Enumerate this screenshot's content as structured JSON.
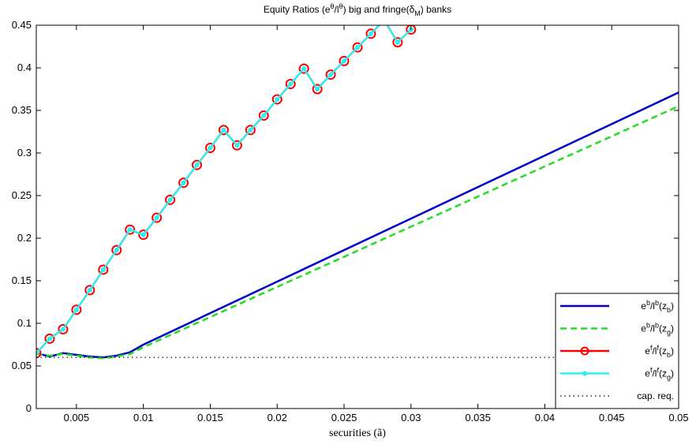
{
  "chart_data": {
    "type": "line",
    "title": {
      "prefix": "Equity Ratios (e",
      "sup1": "θ",
      "mid": "/l",
      "sup2": "θ",
      "after": ") big and fringe(δ",
      "sub": "M",
      "suffix": ") banks"
    },
    "xlabel": "securities (ã)",
    "ylabel": "",
    "xlim": [
      0.002,
      0.05
    ],
    "ylim": [
      0,
      0.45
    ],
    "xticks": [
      0.005,
      0.01,
      0.015,
      0.02,
      0.025,
      0.03,
      0.035,
      0.04,
      0.045,
      0.05
    ],
    "xtick_labels": [
      "0.005",
      "0.01",
      "0.015",
      "0.02",
      "0.025",
      "0.03",
      "0.035",
      "0.04",
      "0.045",
      "0.05"
    ],
    "yticks": [
      0,
      0.05,
      0.1,
      0.15,
      0.2,
      0.25,
      0.3,
      0.35,
      0.4,
      0.45
    ],
    "ytick_labels": [
      "0",
      "0.05",
      "0.1",
      "0.15",
      "0.2",
      "0.25",
      "0.3",
      "0.35",
      "0.4",
      "0.45"
    ],
    "grid": false,
    "legend_position": "bottom-right",
    "series": [
      {
        "name": "e^b/l^b(z_b)",
        "legend": {
          "base": "e",
          "sup1": "b",
          "mid": "/l",
          "sup2": "b",
          "paren": "(z",
          "sub": "b",
          "close": ")"
        },
        "color": "#0000cc",
        "style": "solid",
        "marker": "none",
        "x": [
          0.002,
          0.003,
          0.004,
          0.005,
          0.006,
          0.007,
          0.008,
          0.009,
          0.01,
          0.05
        ],
        "y": [
          0.065,
          0.061,
          0.065,
          0.063,
          0.061,
          0.06,
          0.062,
          0.066,
          0.075,
          0.371
        ]
      },
      {
        "name": "e^b/l^b(z_g)",
        "legend": {
          "base": "e",
          "sup1": "b",
          "mid": "/l",
          "sup2": "b",
          "paren": "(z",
          "sub": "g",
          "close": ")"
        },
        "color": "#22dd22",
        "style": "dashed",
        "marker": "none",
        "x": [
          0.002,
          0.003,
          0.004,
          0.005,
          0.006,
          0.007,
          0.008,
          0.009,
          0.01,
          0.05
        ],
        "y": [
          0.064,
          0.062,
          0.064,
          0.062,
          0.06,
          0.059,
          0.061,
          0.064,
          0.072,
          0.355
        ]
      },
      {
        "name": "e^f/l^f(z_b)",
        "legend": {
          "base": "e",
          "sup1": "f",
          "mid": "/l",
          "sup2": "f",
          "paren": "(z",
          "sub": "b",
          "close": ")"
        },
        "color": "#ff0000",
        "style": "solid",
        "marker": "circle",
        "x": [
          0.002,
          0.003,
          0.004,
          0.005,
          0.006,
          0.007,
          0.008,
          0.009,
          0.01,
          0.011,
          0.012,
          0.013,
          0.014,
          0.015,
          0.016,
          0.017,
          0.018,
          0.019,
          0.02,
          0.021,
          0.022,
          0.023,
          0.024,
          0.025,
          0.026,
          0.027,
          0.028,
          0.029,
          0.03
        ],
        "y": [
          0.065,
          0.082,
          0.093,
          0.116,
          0.139,
          0.163,
          0.186,
          0.21,
          0.204,
          0.224,
          0.245,
          0.265,
          0.286,
          0.306,
          0.327,
          0.309,
          0.327,
          0.344,
          0.363,
          0.381,
          0.399,
          0.375,
          0.392,
          0.408,
          0.424,
          0.44,
          0.456,
          0.43,
          0.445
        ]
      },
      {
        "name": "e^f/l^f(z_g)",
        "legend": {
          "base": "e",
          "sup1": "f",
          "mid": "/l",
          "sup2": "f",
          "paren": "(z",
          "sub": "g",
          "close": ")"
        },
        "color": "#33eeee",
        "style": "solid",
        "marker": "dot",
        "x": [
          0.002,
          0.003,
          0.004,
          0.005,
          0.006,
          0.007,
          0.008,
          0.009,
          0.01,
          0.011,
          0.012,
          0.013,
          0.014,
          0.015,
          0.016,
          0.017,
          0.018,
          0.019,
          0.02,
          0.021,
          0.022,
          0.023,
          0.024,
          0.025,
          0.026,
          0.027,
          0.028,
          0.029,
          0.03
        ],
        "y": [
          0.065,
          0.082,
          0.093,
          0.116,
          0.139,
          0.163,
          0.186,
          0.21,
          0.204,
          0.224,
          0.245,
          0.265,
          0.286,
          0.306,
          0.327,
          0.309,
          0.327,
          0.344,
          0.363,
          0.381,
          0.399,
          0.375,
          0.392,
          0.408,
          0.424,
          0.44,
          0.456,
          0.43,
          0.445
        ]
      },
      {
        "name": "cap. req.",
        "legend": {
          "base": "cap. req.",
          "sup1": "",
          "mid": "",
          "sup2": "",
          "paren": "",
          "sub": "",
          "close": ""
        },
        "color": "#000000",
        "style": "dotted",
        "marker": "none",
        "x": [
          0.002,
          0.05
        ],
        "y": [
          0.06,
          0.06
        ]
      }
    ]
  }
}
